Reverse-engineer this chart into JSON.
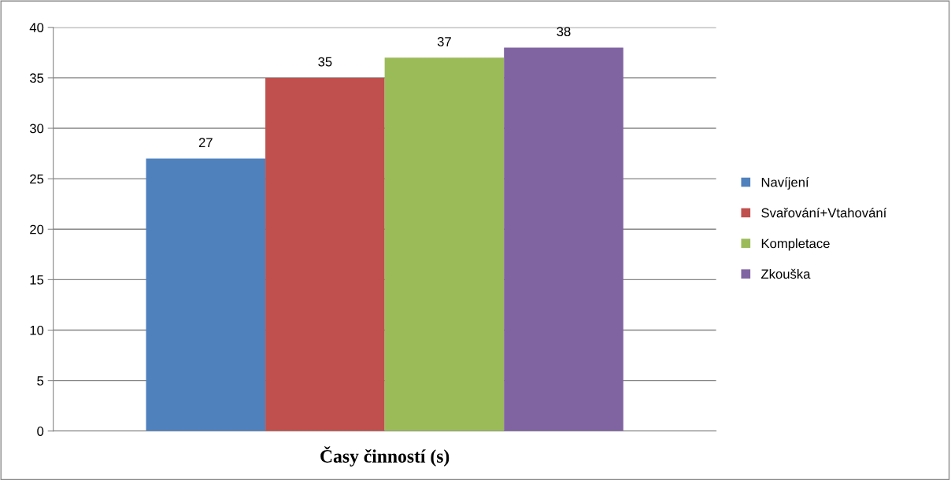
{
  "chart_data": {
    "type": "bar",
    "xlabel": null,
    "categories": [
      "Časy činností (s)"
    ],
    "series": [
      {
        "name": "Navíjení",
        "color": "#4f81bd",
        "values": [
          27
        ]
      },
      {
        "name": "Svařování+Vtahování",
        "color": "#c0504d",
        "values": [
          35
        ]
      },
      {
        "name": "Kompletace",
        "color": "#9bbb59",
        "values": [
          37
        ]
      },
      {
        "name": "Zkouška",
        "color": "#8064a2",
        "values": [
          38
        ]
      }
    ],
    "ylim": [
      0,
      40
    ],
    "yticks": [
      0,
      5,
      10,
      15,
      20,
      25,
      30,
      35,
      40
    ],
    "grid": "y",
    "legend": "right",
    "data_labels": true
  }
}
